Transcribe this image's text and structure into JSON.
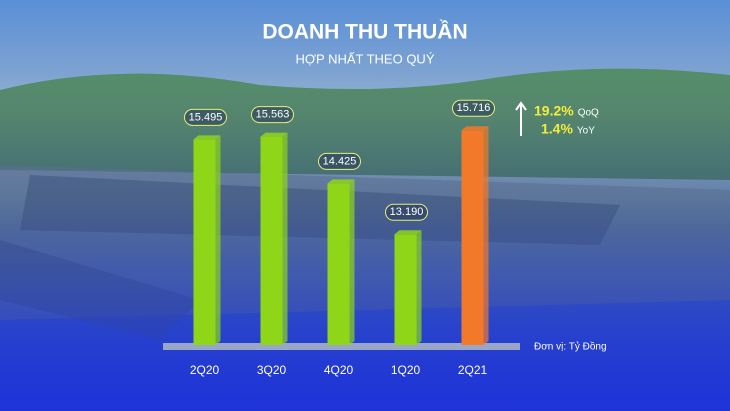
{
  "chart_data": {
    "type": "bar",
    "title": "DOANH THU THUẦN",
    "subtitle": "HỢP NHẤT THEO QUÝ",
    "categories": [
      "2Q20",
      "3Q20",
      "4Q20",
      "1Q20",
      "2Q21"
    ],
    "values": [
      15495,
      15563,
      14425,
      13190,
      15716
    ],
    "value_labels": [
      "15.495",
      "15.563",
      "14.425",
      "13.190",
      "15.716"
    ],
    "colors": [
      "#8fd619",
      "#8fd619",
      "#8fd619",
      "#8fd619",
      "#f2792a"
    ],
    "ylim": [
      10500,
      16500
    ],
    "unit": "Đơn vị: Tỷ Đồng",
    "growth": [
      {
        "label": "19.2%",
        "basis": "QoQ"
      },
      {
        "label": "1.4%",
        "basis": "YoY"
      }
    ]
  }
}
